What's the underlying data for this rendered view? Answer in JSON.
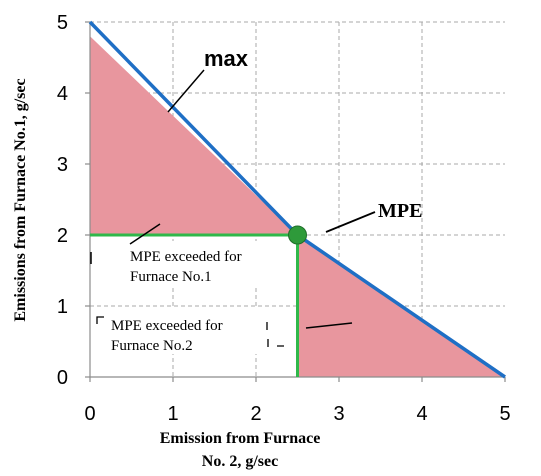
{
  "chart_data": {
    "type": "area",
    "xlabel": [
      "Emission from Furnace",
      "No. 2, g/sec"
    ],
    "ylabel": "Emissions from Furnace No.1, g/sec",
    "xlim": [
      0,
      5
    ],
    "ylim": [
      0,
      5
    ],
    "x_ticks": [
      "0",
      "1",
      "2",
      "3",
      "4",
      "5"
    ],
    "y_ticks": [
      "0",
      "1",
      "2",
      "3",
      "4",
      "5"
    ],
    "grid": "dashed vertical at x ticks, dashed horizontal at y ticks",
    "series": [
      {
        "name": "max",
        "kind": "line",
        "color": "#1f6fc5",
        "x": [
          0,
          2.5,
          5
        ],
        "y": [
          5,
          2,
          0
        ]
      }
    ],
    "region_left": {
      "x": [
        0,
        2.5
      ],
      "y_top": [
        4.8,
        2.0
      ],
      "y_bottom": 2,
      "fill": "#e8969e"
    },
    "region_right": {
      "x": [
        2.5,
        5
      ],
      "y_top": [
        2.0,
        0.0
      ],
      "x_left": 2.5,
      "fill": "#e8969e"
    },
    "mpe_point": {
      "x": 2.5,
      "y": 2.0,
      "color": "#2e9a3a",
      "label": "MPE"
    },
    "mpe_lines": {
      "color": "#2fb84a",
      "x": 2.5,
      "y": 2.0
    },
    "annotations": [
      {
        "id": "max",
        "text": "max"
      },
      {
        "id": "mpe",
        "text": "MPE"
      },
      {
        "id": "furnace1",
        "lines": [
          "MPE exceeded for",
          "Furnace No.1"
        ]
      },
      {
        "id": "furnace2",
        "lines": [
          "MPE exceeded for",
          "Furnace No.2"
        ]
      }
    ]
  }
}
